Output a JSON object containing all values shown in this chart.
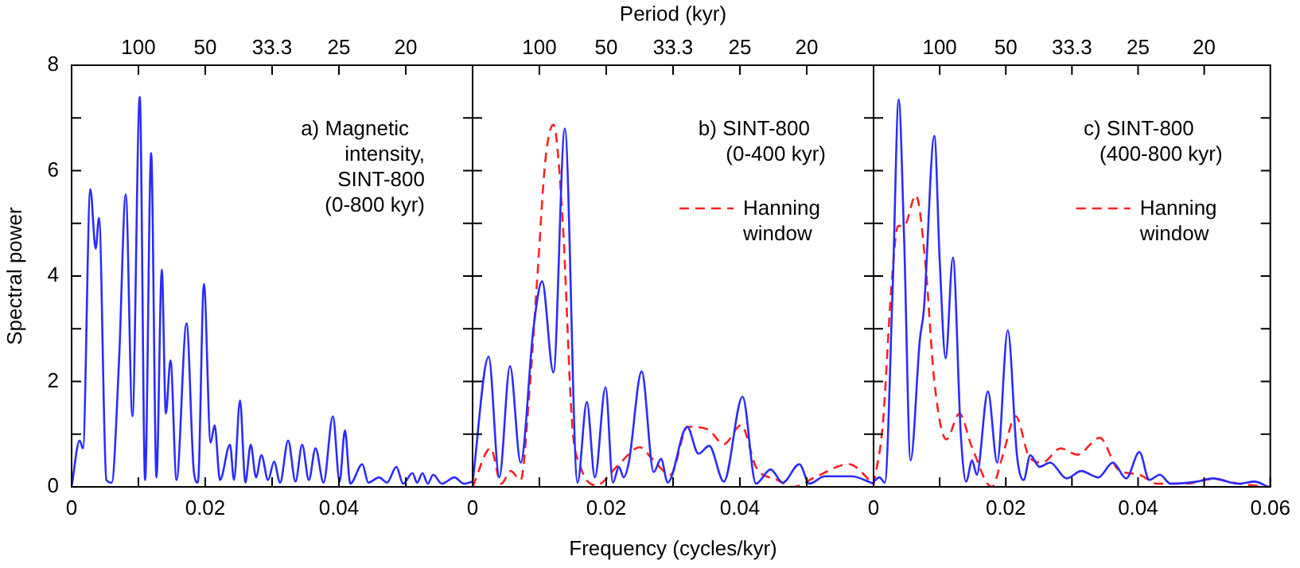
{
  "chart_data": [
    {
      "type": "line",
      "ylabel": "Spectral power",
      "marker": "none",
      "xlim": [
        0,
        0.06
      ],
      "ylim": [
        0,
        8
      ],
      "xticks": [
        0,
        {
          "value": 0.01,
          "label": null
        },
        0.02,
        {
          "value": 0.03,
          "label": null
        },
        0.04,
        {
          "value": 0.05,
          "label": null
        },
        {
          "value": 0.06,
          "label": null
        }
      ],
      "yticks": [
        0,
        {
          "value": 1,
          "label": null
        },
        2,
        {
          "value": 3,
          "label": null
        },
        4,
        {
          "value": 5,
          "label": null
        },
        6,
        {
          "value": 7,
          "label": null
        },
        8
      ],
      "annotations": [
        "a) Magnetic intensity, SINT-800 (0-800 kyr)",
        "100",
        "50",
        "33.3",
        "25",
        "20"
      ],
      "series": [
        {
          "color": "#2b2bff",
          "line_style": "solid",
          "x": [
            0,
            0.0012,
            0.0017,
            0.0028,
            0.0036,
            0.0041,
            0.0052,
            0.006,
            0.0071,
            0.0081,
            0.0091,
            0.0102,
            0.011,
            0.0119,
            0.0127,
            0.0135,
            0.0141,
            0.0148,
            0.0157,
            0.0172,
            0.0183,
            0.0189,
            0.0198,
            0.0208,
            0.0214,
            0.0222,
            0.0237,
            0.0243,
            0.0252,
            0.026,
            0.0268,
            0.0276,
            0.0284,
            0.0294,
            0.0303,
            0.0312,
            0.0324,
            0.0335,
            0.0345,
            0.0355,
            0.0365,
            0.0377,
            0.0391,
            0.0401,
            0.0409,
            0.0417,
            0.0435,
            0.0444,
            0.046,
            0.0472,
            0.0486,
            0.0496,
            0.051,
            0.0517,
            0.0525,
            0.0533,
            0.0541,
            0.0554,
            0.0573,
            0.0587,
            0.06
          ],
          "values": [
            0,
            0.88,
            0.73,
            5.65,
            4.52,
            5.1,
            0.13,
            0.08,
            2.4,
            5.55,
            1.34,
            7.4,
            0.13,
            6.33,
            0.18,
            4.12,
            1.39,
            2.4,
            0.13,
            3.1,
            0.28,
            0.08,
            3.85,
            0.84,
            1.17,
            0.13,
            0.8,
            0.13,
            1.64,
            0.08,
            0.8,
            0.18,
            0.6,
            0.13,
            0.48,
            0.08,
            0.88,
            0.1,
            0.8,
            0.13,
            0.73,
            0.08,
            1.34,
            0.1,
            1.07,
            0.06,
            0.43,
            0.08,
            0.18,
            0.08,
            0.38,
            0.06,
            0.26,
            0.08,
            0.26,
            0.06,
            0.23,
            0.06,
            0.18,
            0.06,
            0.1
          ]
        }
      ]
    },
    {
      "type": "line",
      "title": "Period (kyr)",
      "xlabel": "Frequency (cycles/kyr)",
      "marker": "none",
      "legend": "top right",
      "tick_labels": "x",
      "xlim": [
        0,
        0.06
      ],
      "ylim": [
        0,
        8
      ],
      "xticks": [
        0,
        {
          "value": 0.01,
          "label": null
        },
        0.02,
        {
          "value": 0.03,
          "label": null
        },
        0.04,
        {
          "value": 0.05,
          "label": null
        },
        {
          "value": 0.06,
          "label": null
        }
      ],
      "yticks": [
        0,
        {
          "value": 1,
          "label": null
        },
        2,
        {
          "value": 3,
          "label": null
        },
        4,
        {
          "value": 5,
          "label": null
        },
        6,
        {
          "value": 7,
          "label": null
        },
        8
      ],
      "annotations": [
        "b) SINT-800 (0-400 kyr)",
        "100",
        "50",
        "33.3",
        "25",
        "20"
      ],
      "series": [
        {
          "color": "#2b2bff",
          "line_style": "solid",
          "x": [
            0,
            0.0024,
            0.004,
            0.0056,
            0.0072,
            0.0091,
            0.0104,
            0.0121,
            0.0138,
            0.0157,
            0.0171,
            0.0183,
            0.0199,
            0.021,
            0.0219,
            0.0226,
            0.0234,
            0.0253,
            0.0271,
            0.0282,
            0.0292,
            0.0321,
            0.0338,
            0.0354,
            0.0376,
            0.0404,
            0.0424,
            0.0446,
            0.0464,
            0.0489,
            0.0504,
            0.0527,
            0.0567,
            0.06
          ],
          "values": [
            0.08,
            2.47,
            0.18,
            2.29,
            0.46,
            3.0,
            3.9,
            2.17,
            6.8,
            0.08,
            1.61,
            0.18,
            1.89,
            0.08,
            0.38,
            0.18,
            0.48,
            2.19,
            0.28,
            0.53,
            0.08,
            1.14,
            0.63,
            0.78,
            0.1,
            1.71,
            0.06,
            0.33,
            0.08,
            0.43,
            0.06,
            0.2,
            0.2,
            0.06
          ]
        },
        {
          "name": "Hanning window",
          "color": "#ff2020",
          "line_style": "dashed",
          "x": [
            0,
            0.0027,
            0.0043,
            0.0057,
            0.0072,
            0.0085,
            0.0097,
            0.0109,
            0.0121,
            0.0135,
            0.0149,
            0.0161,
            0.0185,
            0.0217,
            0.025,
            0.0269,
            0.0296,
            0.0322,
            0.0352,
            0.0376,
            0.0402,
            0.0424,
            0.0456,
            0.048,
            0.0512,
            0.0563,
            0.06
          ],
          "values": [
            0,
            0.73,
            0.06,
            0.3,
            0.13,
            1.79,
            4.0,
            6.21,
            6.87,
            5.0,
            1.19,
            0.4,
            0.03,
            0.4,
            0.75,
            0.53,
            0.23,
            1.14,
            1.09,
            0.81,
            1.17,
            0.38,
            0.13,
            0,
            0.18,
            0.43,
            0.05
          ]
        }
      ]
    },
    {
      "type": "line",
      "marker": "none",
      "legend": "top right",
      "tick_labels": "x",
      "xlim": [
        0,
        0.06
      ],
      "ylim": [
        0,
        8
      ],
      "xticks": [
        0,
        {
          "value": 0.01,
          "label": null
        },
        0.02,
        {
          "value": 0.03,
          "label": null
        },
        0.04,
        {
          "value": 0.05,
          "label": null
        },
        0.06
      ],
      "yticks": [
        0,
        {
          "value": 1,
          "label": null
        },
        2,
        {
          "value": 3,
          "label": null
        },
        4,
        {
          "value": 5,
          "label": null
        },
        6,
        {
          "value": 7,
          "label": null
        },
        8
      ],
      "annotations": [
        "c) SINT-800 (400-800 kyr)",
        "100",
        "50",
        "33.3",
        "25",
        "20"
      ],
      "series": [
        {
          "color": "#2b2bff",
          "line_style": "solid",
          "x": [
            0,
            0.0009,
            0.0017,
            0.0029,
            0.0038,
            0.0046,
            0.0056,
            0.007,
            0.0076,
            0.0092,
            0.01,
            0.0109,
            0.012,
            0.0132,
            0.014,
            0.0149,
            0.0156,
            0.0173,
            0.0187,
            0.0203,
            0.0217,
            0.0227,
            0.0237,
            0.0251,
            0.0267,
            0.0292,
            0.0314,
            0.034,
            0.0362,
            0.0382,
            0.0402,
            0.0417,
            0.0433,
            0.0449,
            0.0489,
            0.0513,
            0.0552,
            0.0576,
            0.0597
          ],
          "values": [
            0.1,
            0.18,
            0.08,
            3.8,
            7.35,
            4.8,
            0.5,
            2.79,
            3.35,
            6.66,
            4.3,
            2.44,
            4.35,
            0.98,
            0.1,
            0.5,
            0.23,
            1.81,
            0.46,
            2.97,
            0.58,
            0.13,
            0.6,
            0.38,
            0.46,
            0.16,
            0.3,
            0.18,
            0.46,
            0.16,
            0.66,
            0.13,
            0.23,
            0.06,
            0.1,
            0.16,
            0.06,
            0.1,
            0
          ]
        },
        {
          "name": "Hanning window",
          "color": "#ff2020",
          "line_style": "dashed",
          "x": [
            0,
            0.0014,
            0.0027,
            0.0037,
            0.0046,
            0.0064,
            0.0078,
            0.0092,
            0.011,
            0.013,
            0.0148,
            0.0179,
            0.0195,
            0.0215,
            0.0235,
            0.0255,
            0.0283,
            0.0308,
            0.0342,
            0.037,
            0.0402,
            0.0429,
            0.0473,
            0.0513,
            0.0552,
            0.0598
          ],
          "values": [
            0.03,
            1.19,
            3.8,
            4.95,
            4.95,
            5.53,
            4.3,
            1.99,
            0.9,
            1.39,
            0.78,
            0,
            0.58,
            1.34,
            0.58,
            0.46,
            0.73,
            0.61,
            0.93,
            0.33,
            0.23,
            0.06,
            0.06,
            0.15,
            0.06,
            0
          ]
        }
      ]
    }
  ]
}
